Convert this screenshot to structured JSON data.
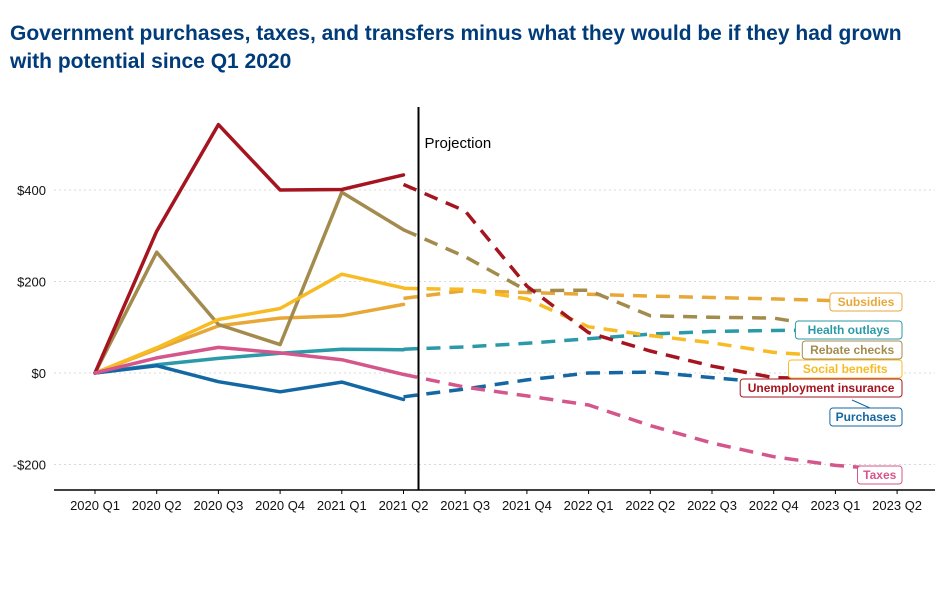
{
  "title": "Government purchases, taxes, and transfers minus what they would be if they had grown with potential since Q1 2020",
  "chart_data": {
    "type": "line",
    "title": "Government purchases, taxes, and transfers minus what they would be if they had grown with potential since Q1 2020",
    "categories": [
      "2020 Q1",
      "2020 Q2",
      "2020 Q3",
      "2020 Q4",
      "2021 Q1",
      "2021 Q2",
      "2021 Q3",
      "2021 Q4",
      "2022 Q1",
      "2022 Q2",
      "2022 Q3",
      "2022 Q4",
      "2023 Q1",
      "2023 Q2"
    ],
    "ylim": [
      -250,
      560
    ],
    "yticks": [
      400,
      200,
      0,
      -200
    ],
    "ytick_labels": [
      "$400",
      "$200",
      "$0",
      "-$200"
    ],
    "projection_label": "Projection",
    "projection_start_index": 5,
    "grid": "horizontal dotted",
    "series": [
      {
        "name": "Subsidies",
        "color": "#e8a838",
        "actual": [
          0,
          52,
          103,
          120,
          125,
          150
        ],
        "projected": [
          null,
          null,
          null,
          null,
          null,
          163,
          180,
          176,
          172,
          168,
          165,
          162,
          158,
          150
        ]
      },
      {
        "name": "Health outlays",
        "color": "#2b9aa8",
        "actual": [
          0,
          18,
          32,
          43,
          52,
          51
        ],
        "projected": [
          null,
          null,
          null,
          null,
          null,
          52,
          57,
          65,
          75,
          85,
          91,
          93,
          94,
          93
        ]
      },
      {
        "name": "Rebate checks",
        "color": "#a38b4e",
        "actual": [
          0,
          264,
          106,
          62,
          395,
          313
        ],
        "projected": [
          null,
          null,
          null,
          null,
          null,
          313,
          254,
          180,
          181,
          125,
          122,
          120,
          98,
          85
        ]
      },
      {
        "name": "Social benefits",
        "color": "#f7bb23",
        "actual": [
          0,
          55,
          117,
          141,
          216,
          186
        ],
        "projected": [
          null,
          null,
          null,
          null,
          null,
          185,
          183,
          162,
          101,
          82,
          66,
          45,
          36,
          30
        ]
      },
      {
        "name": "Unemployment insurance",
        "color": "#a51520",
        "actual": [
          0,
          310,
          543,
          400,
          401,
          433
        ],
        "projected": [
          null,
          null,
          null,
          null,
          null,
          412,
          354,
          190,
          88,
          48,
          15,
          -10,
          -13,
          -20
        ]
      },
      {
        "name": "Purchases",
        "color": "#1367a3",
        "actual": [
          0,
          16,
          -19,
          -41,
          -20,
          -58
        ],
        "projected": [
          null,
          null,
          null,
          null,
          null,
          -52,
          -35,
          -15,
          0,
          2,
          -10,
          -22,
          -30,
          -40
        ]
      },
      {
        "name": "Taxes",
        "color": "#d4568b",
        "actual": [
          0,
          33,
          56,
          44,
          29,
          -3
        ],
        "projected": [
          null,
          null,
          null,
          null,
          null,
          -3,
          -31,
          -50,
          -70,
          -115,
          -153,
          -183,
          -202,
          -212
        ]
      }
    ]
  }
}
